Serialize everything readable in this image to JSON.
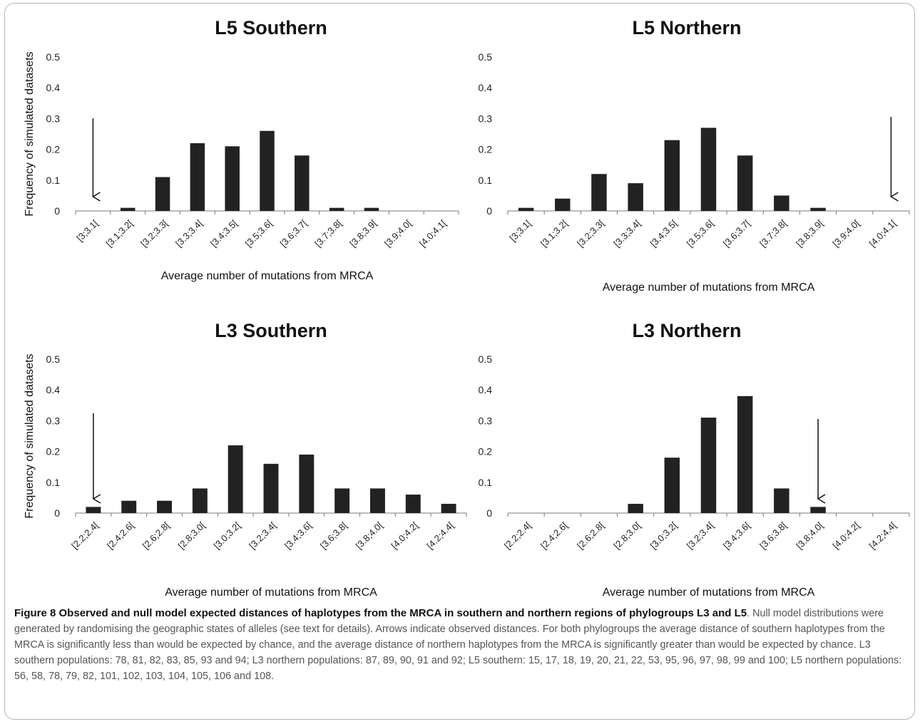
{
  "chart_data": [
    {
      "type": "bar",
      "title": "L5 Southern",
      "xlabel": "Average number of mutations from MRCA",
      "ylabel": "Frequency of simulated datasets",
      "ylim": [
        0,
        0.5
      ],
      "yticks": [
        "0",
        "0.1",
        "0.2",
        "0.3",
        "0.4",
        "0.5"
      ],
      "categories": [
        "[3;3.1[",
        "[3.1;3.2[",
        "[3.2;3.3[",
        "[3.3;3.4[",
        "[3.4;3.5[",
        "[3.5;3.6[",
        "[3.6;3.7[",
        "[3.7;3.8[",
        "[3.8;3.9[",
        "[3.9;4.0[",
        "[4.0;4.1["
      ],
      "values": [
        0,
        0.01,
        0.11,
        0.22,
        0.21,
        0.26,
        0.18,
        0.01,
        0.01,
        0,
        0
      ],
      "observed_arrow_category": "[3;3.1[",
      "bar_color": "#222222"
    },
    {
      "type": "bar",
      "title": "L5 Northern",
      "xlabel": "Average number of mutations from MRCA",
      "ylabel": "",
      "ylim": [
        0,
        0.5
      ],
      "yticks": [
        "0",
        "0.1",
        "0.2",
        "0.3",
        "0.4",
        "0.5"
      ],
      "categories": [
        "[3;3.1[",
        "[3.1;3.2[",
        "[3.2;3.3[",
        "[3.3;3.4[",
        "[3.4;3.5[",
        "[3.5;3.6[",
        "[3.6;3.7[",
        "[3.7;3.8[",
        "[3.8;3.9[",
        "[3.9;4.0[",
        "[4.0;4.1["
      ],
      "values": [
        0.01,
        0.04,
        0.12,
        0.09,
        0.23,
        0.27,
        0.18,
        0.05,
        0.01,
        0,
        0
      ],
      "observed_arrow_category": "[4.0;4.1[",
      "bar_color": "#222222"
    },
    {
      "type": "bar",
      "title": "L3 Southern",
      "xlabel": "Average number of mutations from MRCA",
      "ylabel": "Frequency of simulated datasets",
      "ylim": [
        0,
        0.5
      ],
      "yticks": [
        "0",
        "0.1",
        "0.2",
        "0.3",
        "0.4",
        "0.5"
      ],
      "categories": [
        "[2.2;2.4[",
        "[2.4;2.6[",
        "[2.6;2.8[",
        "[2.8;3.0[",
        "[3.0;3.2[",
        "[3.2;3.4[",
        "[3.4;3.6[",
        "[3.6;3.8[",
        "[3.8;4.0[",
        "[4.0;4.2[",
        "[4.2;4.4["
      ],
      "values": [
        0.02,
        0.04,
        0.04,
        0.08,
        0.22,
        0.16,
        0.19,
        0.08,
        0.08,
        0.06,
        0.03
      ],
      "observed_arrow_category": "[2.2;2.4[",
      "bar_color": "#222222"
    },
    {
      "type": "bar",
      "title": "L3 Northern",
      "xlabel": "Average number of mutations from MRCA",
      "ylabel": "",
      "ylim": [
        0,
        0.5
      ],
      "yticks": [
        "0",
        "0.1",
        "0.2",
        "0.3",
        "0.4",
        "0.5"
      ],
      "categories": [
        "[2.2;2.4[",
        "[2.4;2.6[",
        "[2.6;2.8[",
        "[2.8;3.0[",
        "[3.0;3.2[",
        "[3.2;3.4[",
        "[3.4;3.6[",
        "[3.6;3.8[",
        "[3.8;4.0[",
        "[4.0;4.2[",
        "[4.2;4.4["
      ],
      "values": [
        0,
        0,
        0,
        0.03,
        0.18,
        0.31,
        0.38,
        0.08,
        0.02,
        0,
        0
      ],
      "observed_arrow_category": "[3.8;4.0[",
      "bar_color": "#222222"
    }
  ],
  "caption": {
    "label": "Figure 8",
    "heading": "Observed and null model expected distances of haplotypes from the MRCA in southern and northern regions of phylogroups L3 and L5",
    "body": ". Null model distributions were generated by randomising the geographic states of alleles (see text for details). Arrows indicate observed distances. For both phylogroups the average distance of southern haplotypes from the MRCA is significantly less than would be expected by chance, and the average distance of northern haplotypes from the MRCA is significantly greater than would be expected by chance. L3 southern populations: 78, 81, 82, 83, 85, 93 and 94; L3 northern populations: 87, 89, 90, 91 and 92; L5 southern: 15, 17, 18, 19, 20, 21, 22, 53, 95, 96, 97, 98, 99 and 100; L5 northern populations: 56, 58, 78, 79, 82, 101, 102, 103, 104, 105, 106 and 108."
  }
}
